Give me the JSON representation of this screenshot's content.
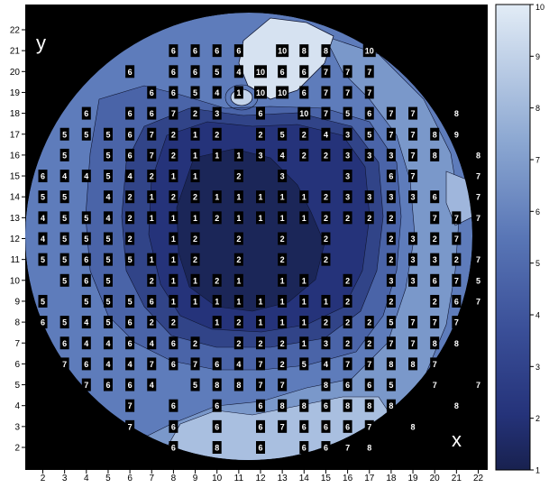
{
  "chart_data": {
    "type": "heatmap",
    "subtype": "contour map on circular wafer with value markers",
    "title": "",
    "xlabel": "x",
    "ylabel": "y",
    "x_ticks": [
      "2",
      "3",
      "4",
      "5",
      "6",
      "7",
      "8",
      "9",
      "10",
      "11",
      "12",
      "13",
      "14",
      "15",
      "16",
      "17",
      "18",
      "19",
      "20",
      "21",
      "22"
    ],
    "y_ticks": [
      "2",
      "3",
      "4",
      "5",
      "6",
      "7",
      "8",
      "9",
      "10",
      "11",
      "12",
      "13",
      "14",
      "15",
      "16",
      "17",
      "18",
      "19",
      "20",
      "21",
      "22"
    ],
    "xlim": [
      1.5,
      22
    ],
    "ylim": [
      1.5,
      22
    ],
    "colorbar": {
      "min": 1,
      "max": 10,
      "ticks": [
        "1",
        "2",
        "3",
        "4",
        "5",
        "6",
        "7",
        "8",
        "9",
        "10"
      ]
    },
    "colors": {
      "low": "#18214f",
      "high": "#dfeaf5",
      "background": "#000000",
      "marker_bg": "#000000",
      "marker_text": "#ffffff"
    },
    "grid_rows": [
      {
        "y": 21,
        "x_start": 8,
        "values": "6666-1088-10"
      },
      {
        "y": 20,
        "x_start": 6,
        "values": "6-66541066777"
      },
      {
        "y": 19,
        "x_start": 7,
        "values": "6654110106777"
      },
      {
        "y": 18,
        "x_start": 4,
        "values": "6-66723-6-1075677-8"
      },
      {
        "y": 17,
        "x_start": 3,
        "values": "55567212-2524357789"
      },
      {
        "y": 16,
        "x_start": 3,
        "values": "5-5672111342233378-8"
      },
      {
        "y": 15,
        "x_start": 2,
        "values": "64454211-2-3--3-67--7"
      },
      {
        "y": 14,
        "x_start": 2,
        "values": "55-4212211111233336-7"
      },
      {
        "y": 13,
        "x_start": 2,
        "values": "45542111211112222-7777"
      },
      {
        "y": 12,
        "x_start": 2,
        "values": "45552-12-2-2-2--2327-8"
      },
      {
        "y": 11,
        "x_start": 2,
        "values": "55655112-2-2-2--2332777"
      },
      {
        "y": 10,
        "x_start": 3,
        "values": "565-21121-11-2-336757"
      },
      {
        "y": 9,
        "x_start": 2,
        "values": "5-5556111111112-2-26788"
      },
      {
        "y": 8,
        "x_start": 2,
        "values": "6545622-121112225777"
      },
      {
        "y": 7,
        "x_start": 3,
        "values": "6446462-22213227788-8"
      },
      {
        "y": 6,
        "x_start": 3,
        "values": "764476764725477887"
      },
      {
        "y": 5,
        "x_start": 3,
        "values": "-7664-58877-8665-7-7-8"
      },
      {
        "y": 4,
        "x_start": 5,
        "values": "-7-6-6-6886888--8"
      },
      {
        "y": 3,
        "x_start": 6,
        "values": "7-6-6-676667-8"
      },
      {
        "y": 2,
        "x_start": 8,
        "values": "6-8-6-6678"
      }
    ]
  }
}
